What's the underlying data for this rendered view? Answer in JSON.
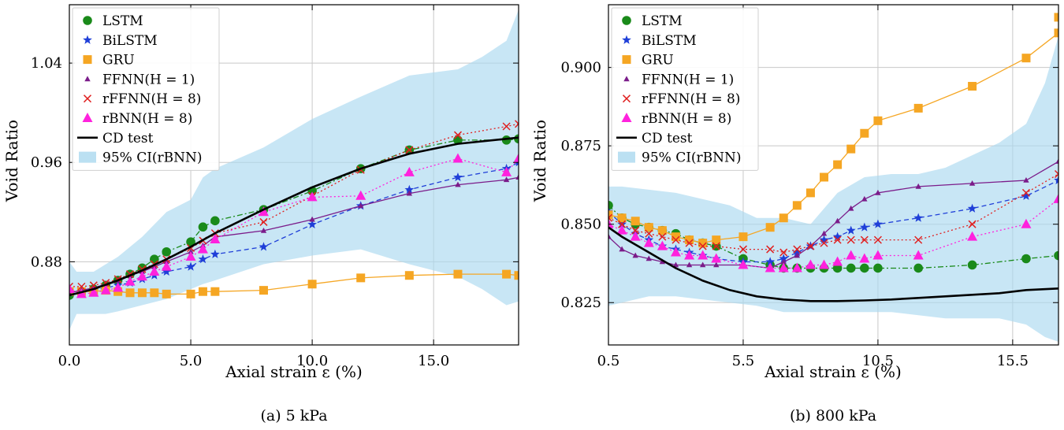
{
  "chart_data": [
    {
      "type": "line",
      "caption": "(a) 5 kPa",
      "xlabel": "Axial strain ε (%)",
      "ylabel": "Void Ratio",
      "xlim": [
        0,
        18.5
      ],
      "ylim": [
        0.813,
        1.087
      ],
      "xticks": [
        0,
        5,
        10,
        15
      ],
      "xtick_labels": [
        "0.0",
        "5.0",
        "10.0",
        "15.0"
      ],
      "yticks": [
        0.88,
        0.96,
        1.04
      ],
      "ytick_labels": [
        "0.88",
        "0.96",
        "1.04"
      ],
      "grid": true,
      "legend_position": "top-left",
      "legend": [
        "LSTM",
        "BiLSTM",
        "GRU",
        "FFNN(H = 1)",
        "rFFNN(H = 8)",
        "rBNN(H = 8)",
        "CD test",
        "95% CI(rBNN)"
      ],
      "ci_band": {
        "name": "95% CI(rBNN)",
        "x": [
          0,
          0.3,
          1,
          1.5,
          2,
          3,
          4,
          5,
          5.5,
          6,
          8,
          10,
          12,
          14,
          16,
          17,
          18,
          18.5
        ],
        "upper": [
          0.88,
          0.872,
          0.872,
          0.878,
          0.884,
          0.9,
          0.92,
          0.93,
          0.948,
          0.955,
          0.972,
          0.995,
          1.013,
          1.03,
          1.035,
          1.045,
          1.058,
          1.083
        ],
        "lower": [
          0.825,
          0.838,
          0.838,
          0.838,
          0.84,
          0.845,
          0.85,
          0.858,
          0.862,
          0.865,
          0.878,
          0.885,
          0.89,
          0.878,
          0.868,
          0.858,
          0.845,
          0.848
        ]
      },
      "series": [
        {
          "name": "LSTM",
          "color": "#1a8a1a",
          "marker": "circle",
          "dash": "7 3 2 3",
          "x": [
            0,
            0.5,
            1,
            1.5,
            2,
            2.5,
            3,
            3.5,
            4,
            5,
            5.5,
            6,
            8,
            10,
            12,
            14,
            16,
            18,
            18.5
          ],
          "y": [
            0.853,
            0.856,
            0.858,
            0.861,
            0.865,
            0.87,
            0.875,
            0.882,
            0.888,
            0.896,
            0.908,
            0.913,
            0.922,
            0.937,
            0.955,
            0.97,
            0.978,
            0.978,
            0.979
          ]
        },
        {
          "name": "BiLSTM",
          "color": "#1f3fd8",
          "marker": "star",
          "dash": "6 4",
          "x": [
            0,
            0.5,
            1,
            1.5,
            2,
            2.5,
            3,
            3.5,
            4,
            5,
            5.5,
            6,
            8,
            10,
            12,
            14,
            16,
            18,
            18.5
          ],
          "y": [
            0.855,
            0.856,
            0.857,
            0.859,
            0.861,
            0.863,
            0.866,
            0.869,
            0.872,
            0.876,
            0.882,
            0.886,
            0.892,
            0.91,
            0.925,
            0.938,
            0.948,
            0.955,
            0.96
          ]
        },
        {
          "name": "GRU",
          "color": "#f5a623",
          "marker": "square",
          "dash": "",
          "x": [
            0,
            0.5,
            1,
            1.5,
            2,
            2.5,
            3,
            3.5,
            4,
            5,
            5.5,
            6,
            8,
            10,
            12,
            14,
            16,
            18,
            18.5
          ],
          "y": [
            0.856,
            0.856,
            0.856,
            0.857,
            0.856,
            0.855,
            0.855,
            0.855,
            0.854,
            0.854,
            0.856,
            0.856,
            0.857,
            0.862,
            0.867,
            0.869,
            0.87,
            0.87,
            0.869
          ]
        },
        {
          "name": "FFNN(H = 1)",
          "color": "#7b1c8a",
          "marker": "triangle-small",
          "dash": "",
          "x": [
            0,
            0.5,
            1,
            1.5,
            2,
            2.5,
            3,
            3.5,
            4,
            5,
            5.5,
            6,
            8,
            10,
            12,
            14,
            16,
            18,
            18.5
          ],
          "y": [
            0.855,
            0.857,
            0.859,
            0.862,
            0.865,
            0.869,
            0.872,
            0.876,
            0.88,
            0.888,
            0.893,
            0.9,
            0.905,
            0.914,
            0.925,
            0.935,
            0.942,
            0.946,
            0.948
          ]
        },
        {
          "name": "rFFNN(H = 8)",
          "color": "#e02020",
          "marker": "x",
          "dash": "2 3",
          "x": [
            0,
            0.5,
            1,
            1.5,
            2,
            2.5,
            3,
            3.5,
            4,
            5,
            5.5,
            6,
            8,
            10,
            12,
            14,
            16,
            18,
            18.5
          ],
          "y": [
            0.86,
            0.86,
            0.861,
            0.863,
            0.866,
            0.87,
            0.874,
            0.878,
            0.882,
            0.891,
            0.897,
            0.903,
            0.912,
            0.933,
            0.954,
            0.97,
            0.982,
            0.989,
            0.991
          ]
        },
        {
          "name": "rBNN(H = 8)",
          "color": "#ff22dd",
          "marker": "triangle",
          "dash": "2 3",
          "x": [
            0,
            0.5,
            1,
            1.5,
            2,
            2.5,
            3,
            3.5,
            4,
            5,
            5.5,
            6,
            8,
            10,
            12,
            14,
            16,
            18,
            18.5
          ],
          "y": [
            0.858,
            0.854,
            0.855,
            0.857,
            0.859,
            0.864,
            0.868,
            0.872,
            0.876,
            0.884,
            0.89,
            0.898,
            0.92,
            0.932,
            0.933,
            0.952,
            0.963,
            0.952,
            0.963
          ]
        },
        {
          "name": "CD test",
          "color": "#000000",
          "marker": "none",
          "dash": "",
          "width": 2.6,
          "x": [
            0,
            1,
            2,
            3,
            4,
            5,
            6,
            8,
            10,
            12,
            14,
            16,
            18,
            18.5
          ],
          "y": [
            0.853,
            0.858,
            0.865,
            0.873,
            0.882,
            0.892,
            0.903,
            0.922,
            0.94,
            0.955,
            0.967,
            0.975,
            0.979,
            0.98
          ]
        }
      ]
    },
    {
      "type": "line",
      "caption": "(b) 800 kPa",
      "xlabel": "Axial strain ε (%)",
      "ylabel": "Void Ratio",
      "xlim": [
        0.5,
        17.2
      ],
      "ylim": [
        0.8115,
        0.92
      ],
      "xticks": [
        0.5,
        5.5,
        10.5,
        15.5
      ],
      "xtick_labels": [
        "0.5",
        "5.5",
        "10.5",
        "15.5"
      ],
      "yticks": [
        0.825,
        0.85,
        0.875,
        0.9
      ],
      "ytick_labels": [
        "0.825",
        "0.850",
        "0.875",
        "0.900"
      ],
      "grid": true,
      "legend_position": "top-left",
      "legend": [
        "LSTM",
        "BiLSTM",
        "GRU",
        "FFNN(H = 1)",
        "rFFNN(H = 8)",
        "rBNN(H = 8)",
        "CD test",
        "95% CI(rBNN)"
      ],
      "ci_band": {
        "name": "95% CI(rBNN)",
        "x": [
          0.5,
          1,
          2,
          3,
          4,
          5,
          6,
          7,
          8,
          9,
          10,
          11,
          12,
          13,
          14,
          15,
          16,
          16.7,
          17.2
        ],
        "upper": [
          0.862,
          0.862,
          0.861,
          0.86,
          0.858,
          0.856,
          0.852,
          0.852,
          0.85,
          0.86,
          0.865,
          0.866,
          0.866,
          0.868,
          0.872,
          0.876,
          0.882,
          0.895,
          0.91
        ],
        "lower": [
          0.824,
          0.825,
          0.827,
          0.827,
          0.826,
          0.825,
          0.824,
          0.822,
          0.822,
          0.822,
          0.822,
          0.822,
          0.821,
          0.82,
          0.82,
          0.82,
          0.818,
          0.814,
          0.8125
        ]
      },
      "series": [
        {
          "name": "LSTM",
          "color": "#1a8a1a",
          "marker": "circle",
          "dash": "7 3 2 3",
          "x": [
            0.5,
            1,
            1.5,
            2,
            2.5,
            3,
            3.5,
            4,
            4.5,
            5.5,
            6.5,
            7,
            7.5,
            8,
            8.5,
            9,
            9.5,
            10,
            10.5,
            12,
            14,
            16,
            17.2
          ],
          "y": [
            0.856,
            0.852,
            0.85,
            0.849,
            0.848,
            0.847,
            0.845,
            0.844,
            0.843,
            0.839,
            0.837,
            0.836,
            0.836,
            0.836,
            0.836,
            0.836,
            0.836,
            0.836,
            0.836,
            0.836,
            0.837,
            0.839,
            0.84
          ]
        },
        {
          "name": "BiLSTM",
          "color": "#1f3fd8",
          "marker": "star",
          "dash": "6 4",
          "x": [
            0.5,
            1,
            1.5,
            2,
            2.5,
            3,
            3.5,
            4,
            4.5,
            5.5,
            6.5,
            7,
            7.5,
            8,
            8.5,
            9,
            9.5,
            10,
            10.5,
            12,
            14,
            16,
            17.2
          ],
          "y": [
            0.854,
            0.85,
            0.847,
            0.845,
            0.843,
            0.842,
            0.841,
            0.84,
            0.839,
            0.838,
            0.838,
            0.839,
            0.841,
            0.843,
            0.845,
            0.846,
            0.848,
            0.849,
            0.85,
            0.852,
            0.855,
            0.859,
            0.864
          ]
        },
        {
          "name": "GRU",
          "color": "#f5a623",
          "marker": "square",
          "dash": "",
          "x": [
            0.5,
            1,
            1.5,
            2,
            2.5,
            3,
            3.5,
            4,
            4.5,
            5.5,
            6.5,
            7,
            7.5,
            8,
            8.5,
            9,
            9.5,
            10,
            10.5,
            12,
            14,
            16,
            17.2,
            17.2
          ],
          "y": [
            0.853,
            0.852,
            0.851,
            0.849,
            0.848,
            0.846,
            0.845,
            0.844,
            0.845,
            0.846,
            0.849,
            0.852,
            0.856,
            0.86,
            0.865,
            0.869,
            0.874,
            0.879,
            0.883,
            0.887,
            0.894,
            0.903,
            0.911,
            0.916
          ]
        },
        {
          "name": "FFNN(H = 1)",
          "color": "#7b1c8a",
          "marker": "triangle-small",
          "dash": "",
          "x": [
            0.5,
            1,
            1.5,
            2,
            2.5,
            3,
            3.5,
            4,
            4.5,
            5.5,
            6.5,
            7,
            7.5,
            8,
            8.5,
            9,
            9.5,
            10,
            10.5,
            12,
            14,
            16,
            17.2
          ],
          "y": [
            0.846,
            0.842,
            0.84,
            0.839,
            0.838,
            0.837,
            0.837,
            0.837,
            0.837,
            0.837,
            0.836,
            0.838,
            0.84,
            0.843,
            0.847,
            0.851,
            0.855,
            0.858,
            0.86,
            0.862,
            0.863,
            0.864,
            0.87
          ]
        },
        {
          "name": "rFFNN(H = 8)",
          "color": "#e02020",
          "marker": "x",
          "dash": "2 3",
          "x": [
            0.5,
            1,
            1.5,
            2,
            2.5,
            3,
            3.5,
            4,
            4.5,
            5.5,
            6.5,
            7,
            7.5,
            8,
            8.5,
            9,
            9.5,
            10,
            10.5,
            12,
            14,
            16,
            17.2
          ],
          "y": [
            0.852,
            0.85,
            0.848,
            0.847,
            0.846,
            0.845,
            0.844,
            0.843,
            0.843,
            0.842,
            0.842,
            0.841,
            0.842,
            0.843,
            0.844,
            0.845,
            0.845,
            0.845,
            0.845,
            0.845,
            0.85,
            0.86,
            0.866
          ]
        },
        {
          "name": "rBNN(H = 8)",
          "color": "#ff22dd",
          "marker": "triangle",
          "dash": "2 3",
          "x": [
            0.5,
            1,
            1.5,
            2,
            2.5,
            3,
            3.5,
            4,
            4.5,
            5.5,
            6.5,
            7,
            7.5,
            8,
            8.5,
            9,
            9.5,
            10,
            10.5,
            12,
            14,
            16,
            17.2
          ],
          "y": [
            0.85,
            0.848,
            0.846,
            0.844,
            0.843,
            0.841,
            0.84,
            0.84,
            0.839,
            0.837,
            0.836,
            0.836,
            0.836,
            0.837,
            0.837,
            0.838,
            0.84,
            0.839,
            0.84,
            0.84,
            0.846,
            0.85,
            0.858
          ]
        },
        {
          "name": "CD test",
          "color": "#000000",
          "marker": "none",
          "dash": "",
          "width": 2.6,
          "x": [
            0.5,
            1,
            2,
            3,
            4,
            5,
            6,
            7,
            8,
            9,
            10,
            11,
            12,
            13,
            14,
            15,
            16,
            17.2
          ],
          "y": [
            0.849,
            0.846,
            0.841,
            0.836,
            0.832,
            0.829,
            0.827,
            0.826,
            0.8255,
            0.8255,
            0.8257,
            0.826,
            0.8265,
            0.827,
            0.8275,
            0.828,
            0.829,
            0.8295
          ]
        }
      ]
    }
  ]
}
